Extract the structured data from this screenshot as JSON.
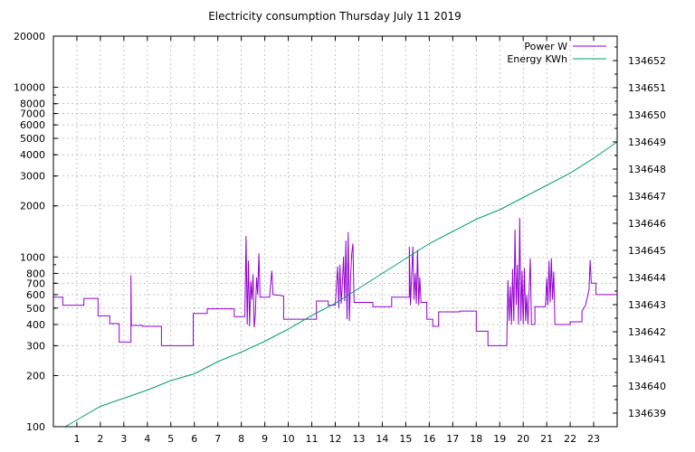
{
  "chart_data": {
    "type": "line",
    "title": "Electricity consumption Thursday July 11 2019",
    "xlabel": "",
    "ylabel": "",
    "xlim": [
      0,
      24
    ],
    "ylim_left": [
      100,
      20000
    ],
    "ylim_right": [
      134638.5,
      134652.9
    ],
    "y_left_scale": "log",
    "grid": true,
    "legend_position": "top-right",
    "x_ticks": [
      "1",
      "2",
      "3",
      "4",
      "5",
      "6",
      "7",
      "8",
      "9",
      "10",
      "11",
      "12",
      "13",
      "14",
      "15",
      "16",
      "17",
      "18",
      "19",
      "20",
      "21",
      "22",
      "23"
    ],
    "y_left_ticks": [
      "100",
      "200",
      "300",
      "400",
      "500",
      "600",
      "700",
      "800",
      "1000",
      "2000",
      "3000",
      "4000",
      "5000",
      "6000",
      "7000",
      "8000",
      "10000",
      "20000"
    ],
    "y_right_ticks": [
      "134639",
      "134640",
      "134641",
      "134642",
      "134643",
      "134644",
      "134645",
      "134646",
      "134647",
      "134648",
      "134649",
      "134650",
      "134651",
      "134652"
    ],
    "series": [
      {
        "name": "Power W",
        "color": "#9400d3",
        "axis": "left",
        "points": [
          [
            0.0,
            580
          ],
          [
            0.4,
            580
          ],
          [
            0.4,
            520
          ],
          [
            1.3,
            520
          ],
          [
            1.3,
            570
          ],
          [
            1.9,
            570
          ],
          [
            1.9,
            450
          ],
          [
            2.4,
            450
          ],
          [
            2.4,
            405
          ],
          [
            2.8,
            405
          ],
          [
            2.8,
            315
          ],
          [
            3.3,
            315
          ],
          [
            3.3,
            780
          ],
          [
            3.32,
            395
          ],
          [
            3.8,
            395
          ],
          [
            3.8,
            390
          ],
          [
            4.6,
            390
          ],
          [
            4.6,
            300
          ],
          [
            5.95,
            300
          ],
          [
            5.95,
            465
          ],
          [
            6.55,
            465
          ],
          [
            6.55,
            495
          ],
          [
            7.7,
            495
          ],
          [
            7.7,
            445
          ],
          [
            8.15,
            445
          ],
          [
            8.2,
            1330
          ],
          [
            8.25,
            400
          ],
          [
            8.3,
            950
          ],
          [
            8.35,
            390
          ],
          [
            8.4,
            720
          ],
          [
            8.45,
            560
          ],
          [
            8.5,
            790
          ],
          [
            8.55,
            385
          ],
          [
            8.6,
            460
          ],
          [
            8.65,
            760
          ],
          [
            8.7,
            600
          ],
          [
            8.75,
            1050
          ],
          [
            8.8,
            580
          ],
          [
            9.2,
            580
          ],
          [
            9.3,
            830
          ],
          [
            9.35,
            600
          ],
          [
            9.8,
            590
          ],
          [
            9.8,
            430
          ],
          [
            11.2,
            430
          ],
          [
            11.2,
            550
          ],
          [
            11.7,
            550
          ],
          [
            11.7,
            520
          ],
          [
            12.0,
            520
          ],
          [
            12.1,
            880
          ],
          [
            12.15,
            500
          ],
          [
            12.2,
            900
          ],
          [
            12.25,
            530
          ],
          [
            12.3,
            690
          ],
          [
            12.35,
            1000
          ],
          [
            12.4,
            550
          ],
          [
            12.45,
            1250
          ],
          [
            12.5,
            430
          ],
          [
            12.55,
            1400
          ],
          [
            12.6,
            420
          ],
          [
            12.65,
            760
          ],
          [
            12.7,
            1050
          ],
          [
            12.75,
            1200
          ],
          [
            12.8,
            540
          ],
          [
            13.6,
            540
          ],
          [
            13.6,
            510
          ],
          [
            14.4,
            510
          ],
          [
            14.4,
            580
          ],
          [
            15.15,
            580
          ],
          [
            15.15,
            1150
          ],
          [
            15.2,
            520
          ],
          [
            15.3,
            1150
          ],
          [
            15.35,
            560
          ],
          [
            15.4,
            800
          ],
          [
            15.45,
            530
          ],
          [
            15.5,
            1100
          ],
          [
            15.55,
            520
          ],
          [
            15.6,
            760
          ],
          [
            15.65,
            540
          ],
          [
            15.9,
            540
          ],
          [
            15.9,
            430
          ],
          [
            16.15,
            430
          ],
          [
            16.15,
            390
          ],
          [
            16.4,
            390
          ],
          [
            16.4,
            475
          ],
          [
            17.3,
            475
          ],
          [
            17.3,
            480
          ],
          [
            18.0,
            480
          ],
          [
            18.0,
            365
          ],
          [
            18.5,
            365
          ],
          [
            18.5,
            300
          ],
          [
            19.3,
            300
          ],
          [
            19.35,
            730
          ],
          [
            19.4,
            420
          ],
          [
            19.45,
            670
          ],
          [
            19.5,
            400
          ],
          [
            19.55,
            850
          ],
          [
            19.6,
            420
          ],
          [
            19.65,
            1450
          ],
          [
            19.7,
            520
          ],
          [
            19.75,
            900
          ],
          [
            19.8,
            400
          ],
          [
            19.85,
            1700
          ],
          [
            19.9,
            420
          ],
          [
            19.95,
            830
          ],
          [
            20.0,
            400
          ],
          [
            20.05,
            860
          ],
          [
            20.1,
            420
          ],
          [
            20.15,
            600
          ],
          [
            20.2,
            400
          ],
          [
            20.3,
            980
          ],
          [
            20.35,
            400
          ],
          [
            20.5,
            400
          ],
          [
            20.5,
            510
          ],
          [
            20.95,
            510
          ],
          [
            21.0,
            750
          ],
          [
            21.05,
            520
          ],
          [
            21.1,
            950
          ],
          [
            21.15,
            540
          ],
          [
            21.2,
            980
          ],
          [
            21.25,
            560
          ],
          [
            21.3,
            820
          ],
          [
            21.35,
            400
          ],
          [
            22.0,
            400
          ],
          [
            22.0,
            415
          ],
          [
            22.5,
            415
          ],
          [
            22.5,
            480
          ],
          [
            22.65,
            520
          ],
          [
            22.8,
            640
          ],
          [
            22.85,
            960
          ],
          [
            22.9,
            700
          ],
          [
            23.1,
            700
          ],
          [
            23.1,
            600
          ],
          [
            24.0,
            600
          ]
        ]
      },
      {
        "name": "Energy KWh",
        "color": "#009e73",
        "axis": "right",
        "points": [
          [
            0.5,
            134638.5
          ],
          [
            1.0,
            134638.75
          ],
          [
            2.0,
            134639.25
          ],
          [
            3.0,
            134639.55
          ],
          [
            4.0,
            134639.85
          ],
          [
            5.0,
            134640.2
          ],
          [
            6.0,
            134640.45
          ],
          [
            7.0,
            134640.9
          ],
          [
            8.0,
            134641.25
          ],
          [
            9.0,
            134641.65
          ],
          [
            10.0,
            134642.1
          ],
          [
            11.0,
            134642.6
          ],
          [
            12.0,
            134643.05
          ],
          [
            13.0,
            134643.6
          ],
          [
            14.0,
            134644.15
          ],
          [
            15.0,
            134644.7
          ],
          [
            16.0,
            134645.25
          ],
          [
            17.0,
            134645.7
          ],
          [
            18.0,
            134646.15
          ],
          [
            19.0,
            134646.5
          ],
          [
            20.0,
            134646.95
          ],
          [
            21.0,
            134647.4
          ],
          [
            22.0,
            134647.85
          ],
          [
            23.0,
            134648.4
          ],
          [
            24.0,
            134649.0
          ]
        ]
      }
    ]
  }
}
